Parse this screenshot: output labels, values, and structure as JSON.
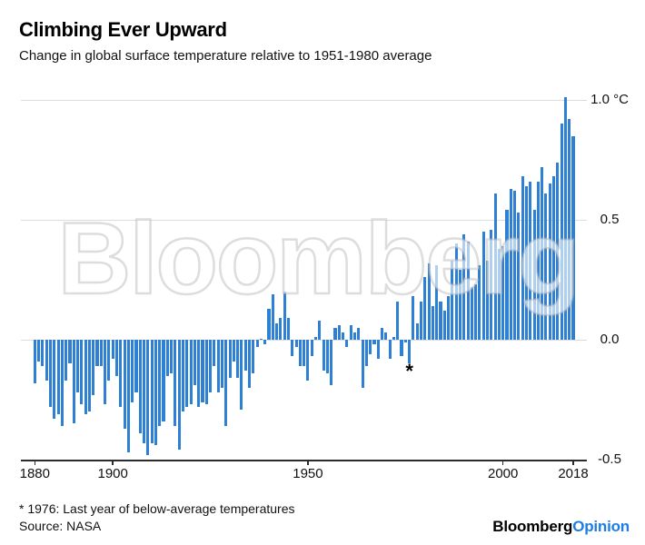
{
  "header": {
    "title": "Climbing Ever Upward",
    "subtitle": "Change in global surface temperature relative to 1951-1980 average"
  },
  "watermark": {
    "text": "Bloomberg"
  },
  "chart_data": {
    "type": "bar",
    "title": "Climbing Ever Upward",
    "xlabel": "",
    "ylabel": "°C",
    "ylim": [
      -0.5,
      1.05
    ],
    "grid": "horizontal",
    "bar_color": "#2e80d5",
    "gridline_color": "#dcdcdc",
    "axis_color": "#2b2b2b",
    "years": {
      "start": 1880,
      "end": 2018
    },
    "values": [
      -0.18,
      -0.09,
      -0.11,
      -0.17,
      -0.28,
      -0.33,
      -0.31,
      -0.36,
      -0.17,
      -0.1,
      -0.35,
      -0.22,
      -0.27,
      -0.31,
      -0.3,
      -0.23,
      -0.11,
      -0.11,
      -0.27,
      -0.17,
      -0.08,
      -0.15,
      -0.28,
      -0.37,
      -0.47,
      -0.26,
      -0.22,
      -0.39,
      -0.43,
      -0.48,
      -0.43,
      -0.44,
      -0.36,
      -0.34,
      -0.15,
      -0.14,
      -0.36,
      -0.46,
      -0.3,
      -0.28,
      -0.27,
      -0.19,
      -0.28,
      -0.26,
      -0.27,
      -0.22,
      -0.11,
      -0.22,
      -0.2,
      -0.36,
      -0.16,
      -0.09,
      -0.16,
      -0.29,
      -0.13,
      -0.2,
      -0.14,
      -0.03,
      0.0,
      -0.02,
      0.13,
      0.19,
      0.07,
      0.09,
      0.2,
      0.09,
      -0.07,
      -0.03,
      -0.11,
      -0.11,
      -0.17,
      -0.07,
      0.01,
      0.08,
      -0.13,
      -0.14,
      -0.19,
      0.05,
      0.06,
      0.03,
      -0.03,
      0.06,
      0.03,
      0.05,
      -0.2,
      -0.11,
      -0.06,
      -0.02,
      -0.08,
      0.05,
      0.03,
      -0.08,
      0.01,
      0.16,
      -0.07,
      -0.01,
      -0.1,
      0.18,
      0.07,
      0.16,
      0.26,
      0.32,
      0.14,
      0.31,
      0.16,
      0.12,
      0.18,
      0.33,
      0.4,
      0.29,
      0.44,
      0.41,
      0.22,
      0.23,
      0.31,
      0.45,
      0.33,
      0.46,
      0.61,
      0.38,
      0.39,
      0.54,
      0.63,
      0.62,
      0.53,
      0.68,
      0.64,
      0.66,
      0.54,
      0.66,
      0.72,
      0.61,
      0.65,
      0.68,
      0.74,
      0.9,
      1.01,
      0.92,
      0.85
    ],
    "y_ticks": [
      {
        "value": 1.0,
        "label": "1.0 °C"
      },
      {
        "value": 0.5,
        "label": "0.5"
      },
      {
        "value": 0.0,
        "label": "0.0"
      },
      {
        "value": -0.5,
        "label": "-0.5"
      }
    ],
    "x_ticks": [
      {
        "year": 1880,
        "label": "1880"
      },
      {
        "year": 1900,
        "label": "1900"
      },
      {
        "year": 1950,
        "label": "1950"
      },
      {
        "year": 2000,
        "label": "2000"
      },
      {
        "year": 2018,
        "label": "2018"
      }
    ],
    "annotation": {
      "year": 1976,
      "symbol": "*"
    }
  },
  "footer": {
    "note": "* 1976: Last year of below-average temperatures",
    "source": "Source: NASA",
    "brand": {
      "black_text": "Bloomberg",
      "accent_text": "Opinion",
      "accent_color": "#1e7de2"
    }
  }
}
